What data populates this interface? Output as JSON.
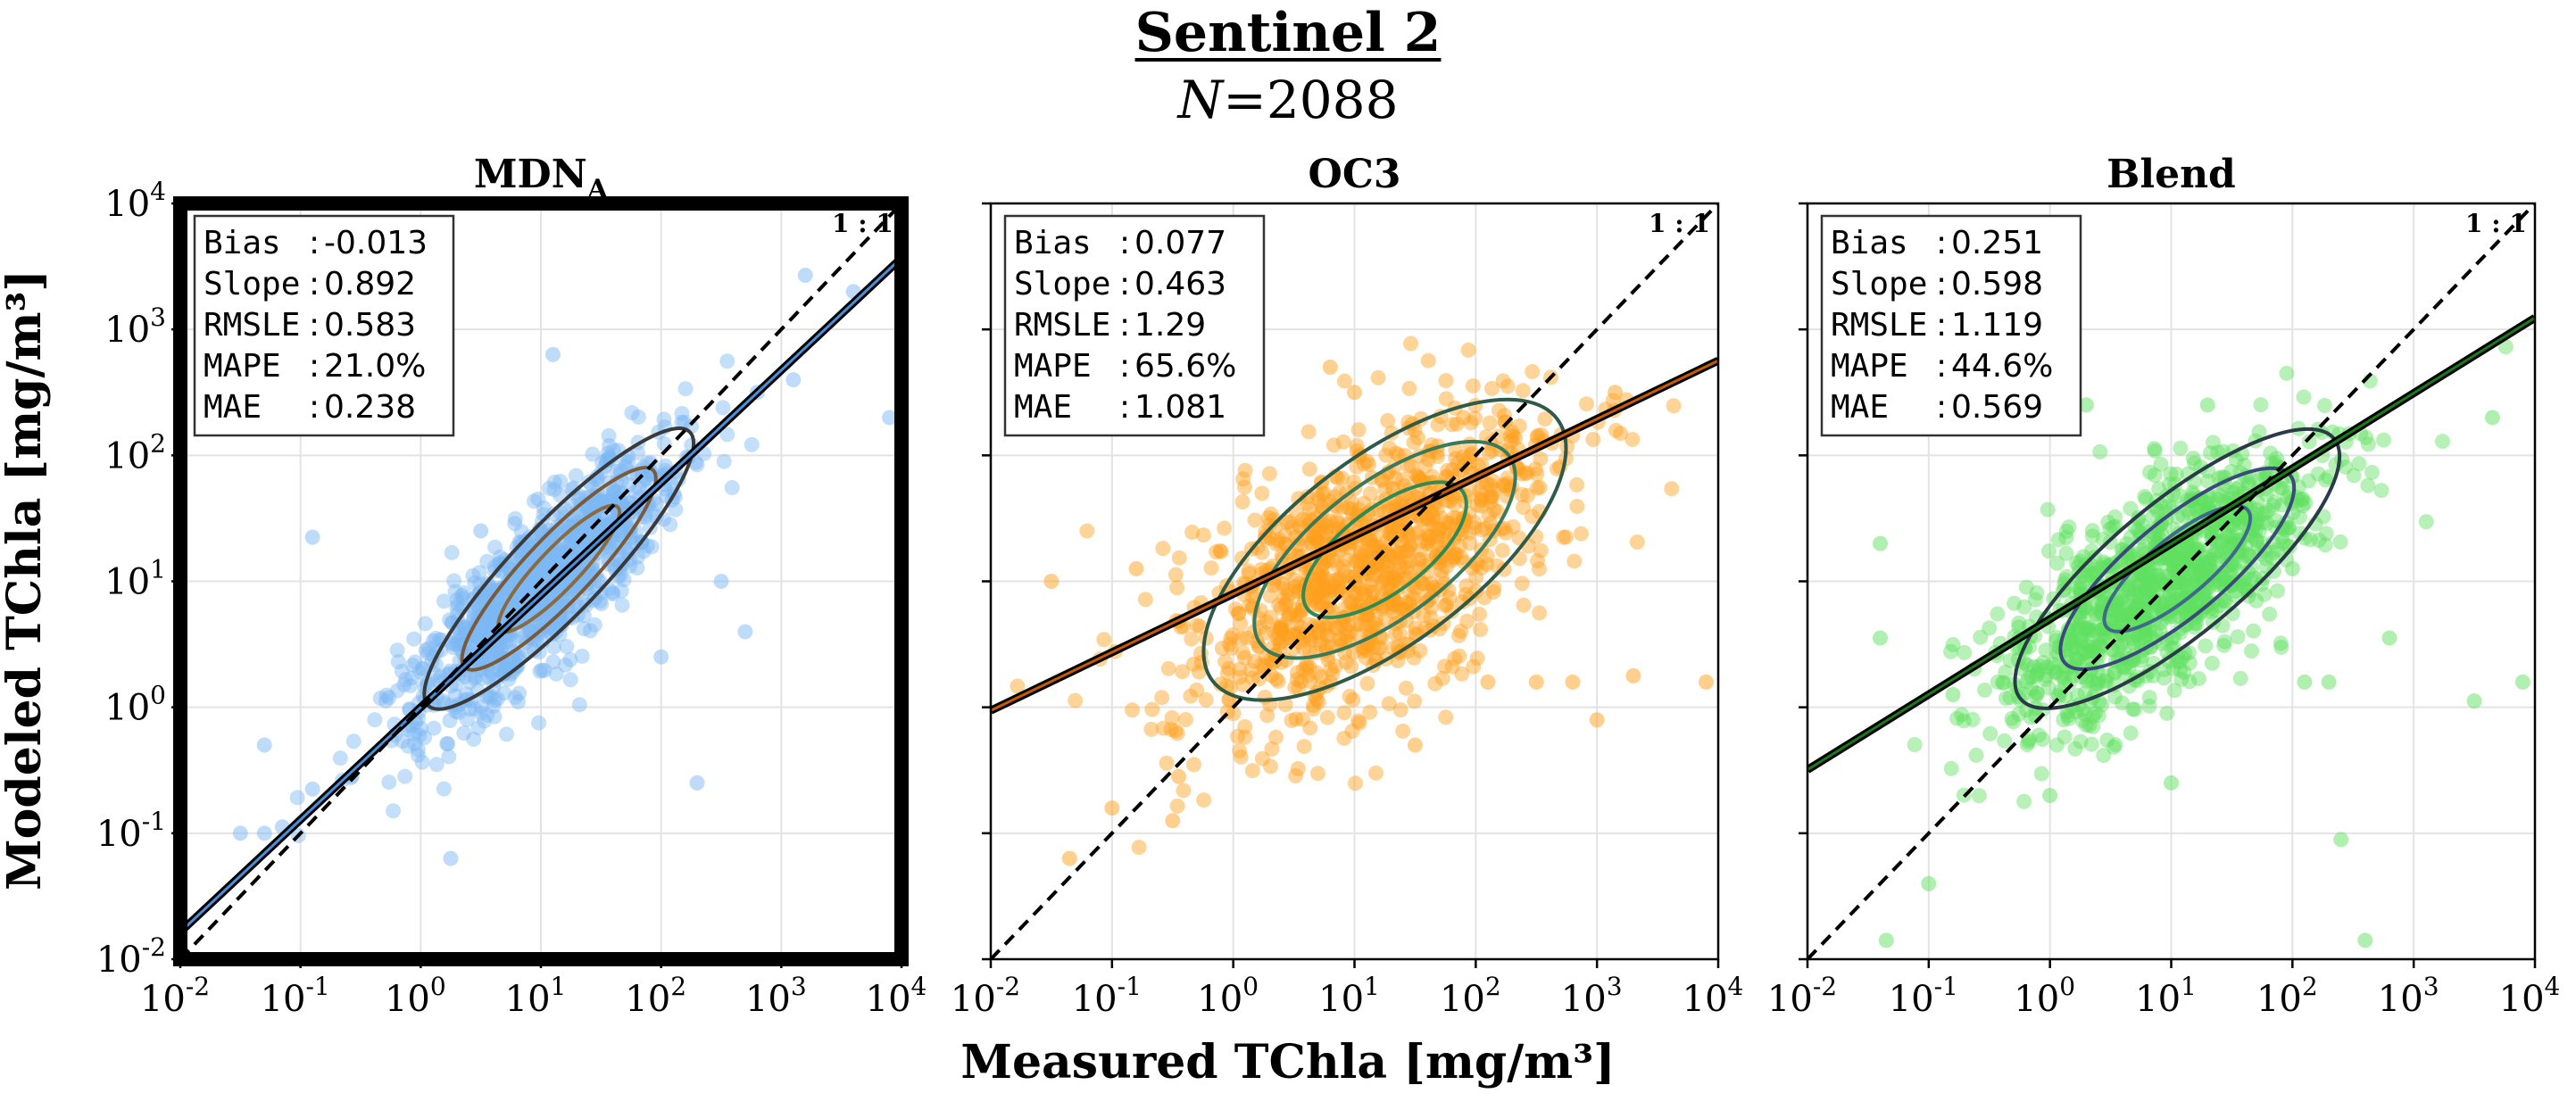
{
  "figure": {
    "title": "Sentinel 2",
    "subtitle_var": "N",
    "subtitle_eq": "=",
    "subtitle_value": "2088",
    "xlabel": "Measured TChla [mg/m³]",
    "ylabel": "Modeled TChla [mg/m³]"
  },
  "chart_data": [
    {
      "type": "scatter",
      "title": "MDN",
      "title_subscript": "A",
      "highlighted": true,
      "color": "#7db9f5",
      "fit_color": "#4a90d9",
      "contour_colors": [
        "#3a3a3a",
        "#7a5a3a",
        "#8a6a40"
      ],
      "xscale": "log",
      "yscale": "log",
      "xlim": [
        0.01,
        10000
      ],
      "ylim": [
        0.01,
        10000
      ],
      "xticks": [
        "10-2",
        "10-1",
        "100",
        "101",
        "102",
        "103",
        "104"
      ],
      "yticks": [
        "10-2",
        "10-1",
        "100",
        "101",
        "102",
        "103",
        "104"
      ],
      "one_to_one_label": "1 : 1",
      "fit": {
        "intercept_log10": 0.0,
        "slope": 0.892
      },
      "stats": [
        {
          "k": "Bias",
          "v": "-0.013"
        },
        {
          "k": "Slope",
          "v": "0.892"
        },
        {
          "k": "RMSLE",
          "v": "0.583"
        },
        {
          "k": "MAPE",
          "v": "21.0%"
        },
        {
          "k": "MAE",
          "v": "0.238"
        }
      ],
      "cloud": {
        "center": [
          1.0,
          0.95
        ],
        "spread_along": 0.75,
        "spread_across": 0.22,
        "n": 1100
      },
      "outliers": [
        [
          -1.5,
          -1.0
        ],
        [
          -1.3,
          -1.0
        ],
        [
          -1.15,
          -0.95
        ],
        [
          -0.9,
          -0.65
        ],
        [
          -0.9,
          1.35
        ],
        [
          -1.3,
          -0.3
        ],
        [
          1.1,
          2.8
        ],
        [
          3.2,
          3.43
        ],
        [
          3.6,
          3.3
        ],
        [
          3.9,
          2.3
        ],
        [
          2.8,
          2.5
        ],
        [
          2.3,
          -0.6
        ],
        [
          2.7,
          0.6
        ],
        [
          2.5,
          1.0
        ],
        [
          3.1,
          2.6
        ],
        [
          0.25,
          -1.2
        ],
        [
          2.0,
          0.4
        ],
        [
          1.6,
          0.9
        ],
        [
          0.5,
          1.4
        ]
      ]
    },
    {
      "type": "scatter",
      "title": "OC3",
      "title_subscript": "",
      "highlighted": false,
      "color": "#ff9f1c",
      "fit_color": "#c85a00",
      "contour_colors": [
        "#2e5a48",
        "#3a7a5a",
        "#2f8a55"
      ],
      "xscale": "log",
      "yscale": "log",
      "xlim": [
        0.01,
        10000
      ],
      "ylim": [
        0.01,
        10000
      ],
      "xticks": [
        "10-2",
        "10-1",
        "100",
        "101",
        "102",
        "103",
        "104"
      ],
      "yticks": [],
      "one_to_one_label": "1 : 1",
      "fit": {
        "intercept_log10": 0.9,
        "slope": 0.463
      },
      "stats": [
        {
          "k": "Bias",
          "v": "0.077"
        },
        {
          "k": "Slope",
          "v": "0.463"
        },
        {
          "k": "RMSLE",
          "v": "1.29"
        },
        {
          "k": "MAPE",
          "v": "65.6%"
        },
        {
          "k": "MAE",
          "v": "1.081"
        }
      ],
      "cloud": {
        "center": [
          1.1,
          1.1
        ],
        "spread_along": 0.85,
        "spread_across": 0.45,
        "n": 1100
      },
      "outliers": [
        [
          -1.35,
          -1.2
        ],
        [
          -1.0,
          -0.8
        ],
        [
          -1.5,
          1.0
        ],
        [
          -0.8,
          1.1
        ],
        [
          3.15,
          2.5
        ],
        [
          3.9,
          0.2
        ],
        [
          2.8,
          0.2
        ],
        [
          3.0,
          -0.1
        ],
        [
          2.1,
          0.2
        ],
        [
          1.5,
          -0.3
        ],
        [
          -0.45,
          -0.55
        ],
        [
          -0.5,
          -0.9
        ],
        [
          2.5,
          0.2
        ],
        [
          0.8,
          2.7
        ],
        [
          1.0,
          2.5
        ],
        [
          1.9,
          2.3
        ],
        [
          3.3,
          0.25
        ]
      ]
    },
    {
      "type": "scatter",
      "title": "Blend",
      "title_subscript": "",
      "highlighted": false,
      "color": "#5fe05f",
      "fit_color": "#1a7a1a",
      "contour_colors": [
        "#2a3a48",
        "#3a4a7a",
        "#3f6a8a"
      ],
      "xscale": "log",
      "yscale": "log",
      "xlim": [
        0.01,
        10000
      ],
      "ylim": [
        0.01,
        10000
      ],
      "xticks": [
        "10-2",
        "10-1",
        "100",
        "101",
        "102",
        "103",
        "104"
      ],
      "yticks": [],
      "one_to_one_label": "1 : 1",
      "fit": {
        "intercept_log10": 0.7,
        "slope": 0.598
      },
      "stats": [
        {
          "k": "Bias",
          "v": "0.251"
        },
        {
          "k": "Slope",
          "v": "0.598"
        },
        {
          "k": "RMSLE",
          "v": "1.119"
        },
        {
          "k": "MAPE",
          "v": "44.6%"
        },
        {
          "k": "MAE",
          "v": "0.569"
        }
      ],
      "cloud": {
        "center": [
          0.9,
          0.95
        ],
        "spread_along": 0.8,
        "spread_across": 0.32,
        "n": 1100
      },
      "outliers": [
        [
          -1.35,
          -1.85
        ],
        [
          -1.0,
          -1.4
        ],
        [
          -1.4,
          1.3
        ],
        [
          -1.4,
          0.55
        ],
        [
          2.4,
          -1.05
        ],
        [
          2.6,
          -1.85
        ],
        [
          3.9,
          0.2
        ],
        [
          3.5,
          0.05
        ],
        [
          2.8,
          0.55
        ],
        [
          1.3,
          2.4
        ],
        [
          1.9,
          1.9
        ],
        [
          3.65,
          2.3
        ],
        [
          2.1,
          0.2
        ],
        [
          0.3,
          2.4
        ],
        [
          -0.8,
          0.1
        ],
        [
          1.0,
          -0.6
        ],
        [
          0.0,
          -0.7
        ],
        [
          2.3,
          0.2
        ],
        [
          2.0,
          1.1
        ]
      ]
    }
  ]
}
